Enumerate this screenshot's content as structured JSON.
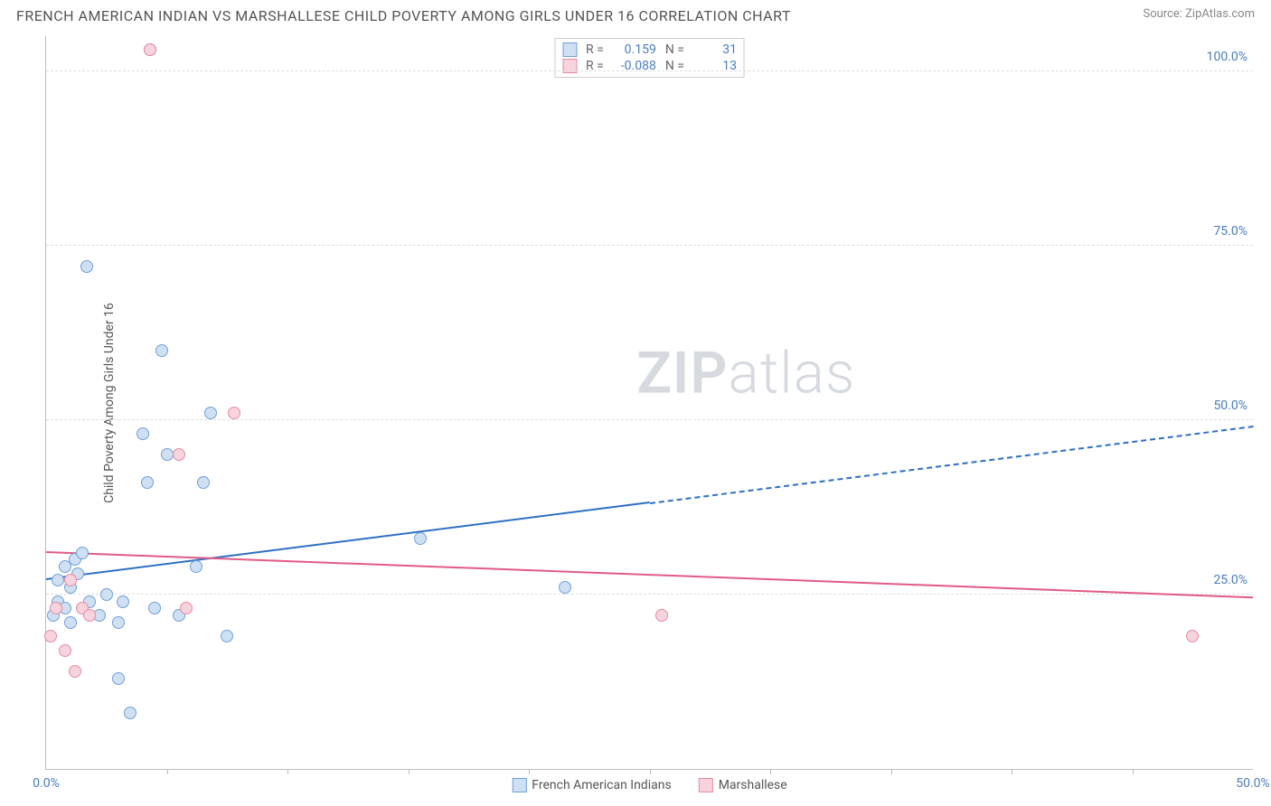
{
  "title": "FRENCH AMERICAN INDIAN VS MARSHALLESE CHILD POVERTY AMONG GIRLS UNDER 16 CORRELATION CHART",
  "source_prefix": "Source: ",
  "source_name": "ZipAtlas.com",
  "ylabel": "Child Poverty Among Girls Under 16",
  "watermark_a": "ZIP",
  "watermark_b": "atlas",
  "chart": {
    "type": "scatter",
    "xlim": [
      0,
      50
    ],
    "ylim": [
      0,
      105
    ],
    "xtick_labels": [
      {
        "pos": 0,
        "label": "0.0%"
      },
      {
        "pos": 50,
        "label": "50.0%"
      }
    ],
    "xticks_minor": [
      5,
      10,
      15,
      20,
      25,
      30,
      35,
      40,
      45
    ],
    "ytick_labels": [
      {
        "pos": 25,
        "label": "25.0%"
      },
      {
        "pos": 50,
        "label": "50.0%"
      },
      {
        "pos": 75,
        "label": "75.0%"
      },
      {
        "pos": 100,
        "label": "100.0%"
      }
    ],
    "grid_color": "#dddddd",
    "background_color": "#ffffff",
    "marker_radius": 7,
    "series": [
      {
        "name": "French American Indians",
        "fill": "#cfe0f3",
        "stroke": "#6f9fd8",
        "trend_color": "#2e6fc4",
        "R": "0.159",
        "N": "31",
        "trend": {
          "x1": 0,
          "y1": 27,
          "x2_solid": 25,
          "y2_solid": 38,
          "x2": 50,
          "y2": 49
        },
        "points": [
          {
            "x": 0.3,
            "y": 22
          },
          {
            "x": 0.5,
            "y": 24
          },
          {
            "x": 0.5,
            "y": 27
          },
          {
            "x": 0.8,
            "y": 23
          },
          {
            "x": 0.8,
            "y": 29
          },
          {
            "x": 1.0,
            "y": 21
          },
          {
            "x": 1.0,
            "y": 26
          },
          {
            "x": 1.2,
            "y": 30
          },
          {
            "x": 1.3,
            "y": 28
          },
          {
            "x": 1.5,
            "y": 31
          },
          {
            "x": 1.7,
            "y": 72
          },
          {
            "x": 1.8,
            "y": 24
          },
          {
            "x": 2.2,
            "y": 22
          },
          {
            "x": 2.5,
            "y": 25
          },
          {
            "x": 3.0,
            "y": 21
          },
          {
            "x": 3.0,
            "y": 13
          },
          {
            "x": 3.2,
            "y": 24
          },
          {
            "x": 3.5,
            "y": 8
          },
          {
            "x": 4.0,
            "y": 48
          },
          {
            "x": 4.2,
            "y": 41
          },
          {
            "x": 4.5,
            "y": 23
          },
          {
            "x": 4.8,
            "y": 60
          },
          {
            "x": 5.0,
            "y": 45
          },
          {
            "x": 5.5,
            "y": 22
          },
          {
            "x": 6.2,
            "y": 29
          },
          {
            "x": 6.5,
            "y": 41
          },
          {
            "x": 6.8,
            "y": 51
          },
          {
            "x": 7.5,
            "y": 19
          },
          {
            "x": 15.5,
            "y": 33
          },
          {
            "x": 21.5,
            "y": 26
          },
          {
            "x": 4.3,
            "y": 103
          }
        ]
      },
      {
        "name": "Marshallese",
        "fill": "#f7d4dd",
        "stroke": "#e48aa4",
        "trend_color": "#e05a87",
        "R": "-0.088",
        "N": "13",
        "trend": {
          "x1": 0,
          "y1": 31,
          "x2_solid": 50,
          "y2_solid": 24.5,
          "x2": 50,
          "y2": 24.5
        },
        "points": [
          {
            "x": 0.2,
            "y": 19
          },
          {
            "x": 0.4,
            "y": 23
          },
          {
            "x": 0.8,
            "y": 17
          },
          {
            "x": 1.0,
            "y": 27
          },
          {
            "x": 1.2,
            "y": 14
          },
          {
            "x": 1.5,
            "y": 23
          },
          {
            "x": 1.8,
            "y": 22
          },
          {
            "x": 4.3,
            "y": 103
          },
          {
            "x": 5.5,
            "y": 45
          },
          {
            "x": 5.8,
            "y": 23
          },
          {
            "x": 7.8,
            "y": 51
          },
          {
            "x": 25.5,
            "y": 22
          },
          {
            "x": 47.5,
            "y": 19
          }
        ]
      }
    ],
    "corr_legend_labels": {
      "R": "R =",
      "N": "N ="
    }
  }
}
